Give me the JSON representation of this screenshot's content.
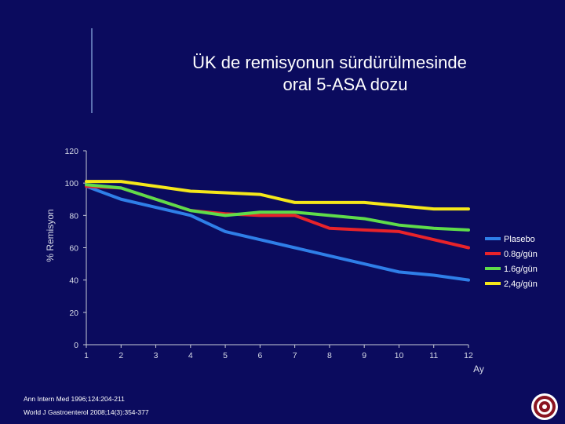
{
  "slide": {
    "title_line1": "ÜK de remisyonun  sürdürülmesinde",
    "title_line2": "oral 5-ASA  dozu",
    "references": [
      "Ann Intern Med 1996;124:204-211",
      "World J Gastroenterol 2008;14(3):354-377"
    ]
  },
  "chart_data": {
    "type": "line",
    "title": "ÜK de remisyonun  sürdürülmesinde oral 5-ASA  dozu",
    "xlabel": "Ay",
    "ylabel": "% Remisyon",
    "x": [
      1,
      2,
      3,
      4,
      5,
      6,
      7,
      8,
      9,
      10,
      11,
      12
    ],
    "xlim": [
      1,
      12
    ],
    "ylim": [
      0,
      120
    ],
    "yticks": [
      0,
      20,
      40,
      60,
      80,
      100,
      120
    ],
    "grid": false,
    "legend_position": "right",
    "series": [
      {
        "name": "Plasebo",
        "color": "#2f7fe8",
        "values": [
          98,
          90,
          85,
          80,
          70,
          65,
          60,
          55,
          50,
          45,
          43,
          40
        ]
      },
      {
        "name": "0.8g/gün",
        "color": "#e8232a",
        "values": [
          98,
          97,
          90,
          83,
          81,
          80,
          80,
          72,
          71,
          70,
          65,
          60
        ]
      },
      {
        "name": "1.6g/gün",
        "color": "#5fdc4a",
        "values": [
          99,
          97,
          90,
          83,
          80,
          82,
          82,
          80,
          78,
          74,
          72,
          71
        ]
      },
      {
        "name": "2,4g/gün",
        "color": "#f5e81a",
        "values": [
          101,
          101,
          98,
          95,
          94,
          93,
          88,
          88,
          88,
          86,
          84,
          84
        ]
      }
    ]
  }
}
